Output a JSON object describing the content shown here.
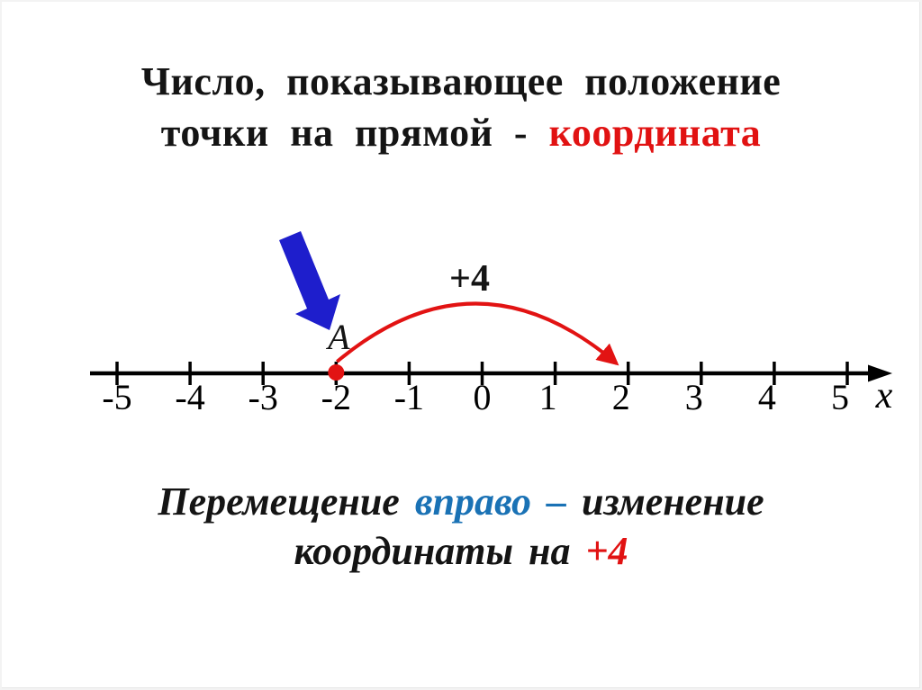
{
  "slide": {
    "title": {
      "line1": "Число, показывающее положение",
      "line2_prefix": "точки на прямой - ",
      "line2_highlight": "координата"
    },
    "number_line": {
      "ticks": [
        -5,
        -4,
        -3,
        -2,
        -1,
        0,
        1,
        2,
        3,
        4,
        5
      ],
      "axis_label": "x",
      "point_label": "A",
      "point_value": -2,
      "jump_label": "+4",
      "jump_from": -2,
      "jump_to": 2
    },
    "caption": {
      "l1_black1": "Перемещение",
      "l1_blue": "вправо –",
      "l1_black2": "изменение",
      "l2_black": "координаты на",
      "l2_red": "+4"
    },
    "colors": {
      "title_highlight": "#e11212",
      "caption_blue": "#1a72b5",
      "caption_red": "#e11212",
      "pointer_blue": "#1e1ecc",
      "arc_red": "#e21313",
      "dot_red": "#e21313"
    }
  }
}
